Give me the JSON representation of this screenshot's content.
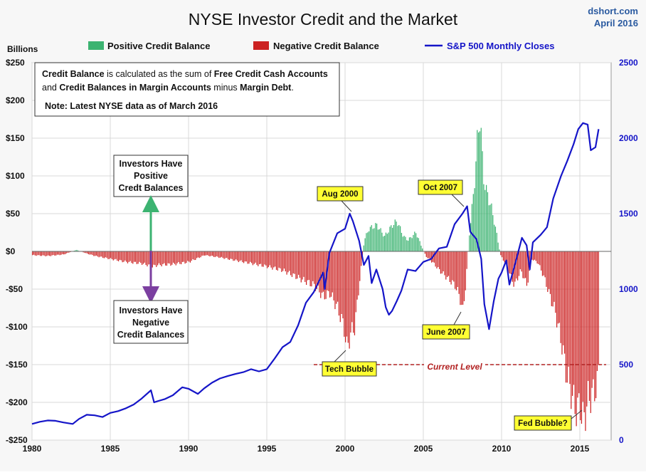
{
  "chart_data": {
    "type": "bar",
    "title": "NYSE Investor Credit and the Market",
    "source": "dshort.com",
    "date": "April 2016",
    "left_axis_label": "Billions",
    "legend": [
      {
        "label": "Positive Credit Balance",
        "color": "#3cb371"
      },
      {
        "label": "Negative Credit Balance",
        "color": "#cc2222"
      },
      {
        "label": "S&P 500 Monthly Closes",
        "color": "#1515c8"
      }
    ],
    "x_ticks": [
      "1980",
      "1985",
      "1990",
      "1995",
      "2000",
      "2005",
      "2010",
      "2015"
    ],
    "x_range": [
      1980,
      2017
    ],
    "y_left": {
      "min": -250,
      "max": 250,
      "ticks": [
        250,
        200,
        150,
        100,
        50,
        0,
        -50,
        -100,
        -150,
        -200,
        -250
      ],
      "tick_labels": [
        "$250",
        "$200",
        "$150",
        "$100",
        "$50",
        "$0",
        "-$50",
        "-$100",
        "-$150",
        "-$200",
        "-$250"
      ]
    },
    "y_right": {
      "min": 0,
      "max": 2500,
      "ticks": [
        2500,
        2000,
        1500,
        1000,
        500,
        0
      ],
      "tick_labels": [
        "2500",
        "2000",
        "1500",
        "1000",
        "500",
        "0"
      ]
    },
    "grid": true,
    "legend_position": "top",
    "credit_balance_series": [
      [
        1980.0,
        -5
      ],
      [
        1981.0,
        -6
      ],
      [
        1982.0,
        -4
      ],
      [
        1982.8,
        2
      ],
      [
        1983.5,
        -3
      ],
      [
        1984.0,
        -6
      ],
      [
        1985.0,
        -10
      ],
      [
        1986.0,
        -14
      ],
      [
        1987.0,
        -16
      ],
      [
        1987.7,
        -20
      ],
      [
        1988.0,
        -18
      ],
      [
        1989.0,
        -17
      ],
      [
        1990.0,
        -14
      ],
      [
        1991.0,
        -5
      ],
      [
        1992.0,
        -8
      ],
      [
        1993.0,
        -12
      ],
      [
        1994.0,
        -16
      ],
      [
        1995.0,
        -20
      ],
      [
        1996.0,
        -25
      ],
      [
        1997.0,
        -35
      ],
      [
        1998.0,
        -45
      ],
      [
        1998.6,
        -60
      ],
      [
        1999.0,
        -55
      ],
      [
        1999.5,
        -75
      ],
      [
        1999.9,
        -100
      ],
      [
        2000.1,
        -130
      ],
      [
        2000.3,
        -110
      ],
      [
        2000.6,
        -100
      ],
      [
        2000.9,
        -40
      ],
      [
        2001.2,
        15
      ],
      [
        2001.5,
        30
      ],
      [
        2002.0,
        35
      ],
      [
        2002.5,
        20
      ],
      [
        2003.0,
        35
      ],
      [
        2003.3,
        40
      ],
      [
        2003.7,
        20
      ],
      [
        2004.0,
        15
      ],
      [
        2004.5,
        25
      ],
      [
        2004.8,
        10
      ],
      [
        2005.0,
        0
      ],
      [
        2005.2,
        -8
      ],
      [
        2005.6,
        -15
      ],
      [
        2006.0,
        -25
      ],
      [
        2006.5,
        -35
      ],
      [
        2007.0,
        -45
      ],
      [
        2007.3,
        -60
      ],
      [
        2007.5,
        -80
      ],
      [
        2007.7,
        -40
      ],
      [
        2007.9,
        20
      ],
      [
        2008.2,
        80
      ],
      [
        2008.4,
        140
      ],
      [
        2008.6,
        183
      ],
      [
        2008.8,
        100
      ],
      [
        2009.0,
        80
      ],
      [
        2009.3,
        60
      ],
      [
        2009.6,
        30
      ],
      [
        2009.9,
        -5
      ],
      [
        2010.2,
        -15
      ],
      [
        2010.5,
        -30
      ],
      [
        2010.8,
        -45
      ],
      [
        2011.2,
        -25
      ],
      [
        2011.6,
        -45
      ],
      [
        2011.9,
        -10
      ],
      [
        2012.3,
        -15
      ],
      [
        2012.7,
        -35
      ],
      [
        2013.0,
        -55
      ],
      [
        2013.4,
        -80
      ],
      [
        2013.8,
        -120
      ],
      [
        2014.1,
        -160
      ],
      [
        2014.4,
        -185
      ],
      [
        2014.7,
        -210
      ],
      [
        2015.0,
        -205
      ],
      [
        2015.2,
        -227
      ],
      [
        2015.5,
        -195
      ],
      [
        2015.8,
        -190
      ],
      [
        2016.1,
        -175
      ],
      [
        2016.2,
        -150
      ]
    ],
    "sp500_series": [
      [
        1980.0,
        107
      ],
      [
        1980.5,
        121
      ],
      [
        1981.0,
        130
      ],
      [
        1981.5,
        128
      ],
      [
        1982.0,
        117
      ],
      [
        1982.6,
        107
      ],
      [
        1983.0,
        140
      ],
      [
        1983.5,
        168
      ],
      [
        1984.0,
        164
      ],
      [
        1984.5,
        153
      ],
      [
        1985.0,
        180
      ],
      [
        1985.5,
        192
      ],
      [
        1986.0,
        211
      ],
      [
        1986.5,
        236
      ],
      [
        1987.0,
        275
      ],
      [
        1987.6,
        330
      ],
      [
        1987.8,
        250
      ],
      [
        1988.0,
        257
      ],
      [
        1988.5,
        272
      ],
      [
        1989.0,
        297
      ],
      [
        1989.6,
        350
      ],
      [
        1990.0,
        340
      ],
      [
        1990.6,
        306
      ],
      [
        1991.0,
        343
      ],
      [
        1991.5,
        380
      ],
      [
        1992.0,
        408
      ],
      [
        1992.5,
        424
      ],
      [
        1993.0,
        438
      ],
      [
        1993.5,
        450
      ],
      [
        1994.0,
        470
      ],
      [
        1994.5,
        455
      ],
      [
        1995.0,
        470
      ],
      [
        1995.5,
        540
      ],
      [
        1996.0,
        615
      ],
      [
        1996.5,
        650
      ],
      [
        1997.0,
        760
      ],
      [
        1997.5,
        910
      ],
      [
        1998.0,
        980
      ],
      [
        1998.6,
        1110
      ],
      [
        1998.7,
        1000
      ],
      [
        1999.0,
        1240
      ],
      [
        1999.5,
        1370
      ],
      [
        2000.0,
        1400
      ],
      [
        2000.3,
        1500
      ],
      [
        2000.5,
        1450
      ],
      [
        2000.9,
        1320
      ],
      [
        2001.2,
        1160
      ],
      [
        2001.5,
        1220
      ],
      [
        2001.7,
        1040
      ],
      [
        2002.0,
        1130
      ],
      [
        2002.4,
        1000
      ],
      [
        2002.6,
        880
      ],
      [
        2002.8,
        830
      ],
      [
        2003.0,
        855
      ],
      [
        2003.3,
        920
      ],
      [
        2003.6,
        990
      ],
      [
        2004.0,
        1130
      ],
      [
        2004.5,
        1120
      ],
      [
        2005.0,
        1180
      ],
      [
        2005.5,
        1200
      ],
      [
        2006.0,
        1270
      ],
      [
        2006.5,
        1280
      ],
      [
        2007.0,
        1430
      ],
      [
        2007.5,
        1500
      ],
      [
        2007.8,
        1549
      ],
      [
        2008.0,
        1380
      ],
      [
        2008.4,
        1330
      ],
      [
        2008.7,
        1200
      ],
      [
        2008.9,
        900
      ],
      [
        2009.2,
        735
      ],
      [
        2009.5,
        920
      ],
      [
        2009.8,
        1070
      ],
      [
        2010.0,
        1110
      ],
      [
        2010.3,
        1190
      ],
      [
        2010.5,
        1030
      ],
      [
        2010.9,
        1180
      ],
      [
        2011.3,
        1340
      ],
      [
        2011.6,
        1290
      ],
      [
        2011.8,
        1130
      ],
      [
        2012.0,
        1310
      ],
      [
        2012.5,
        1360
      ],
      [
        2012.9,
        1410
      ],
      [
        2013.3,
        1600
      ],
      [
        2013.8,
        1750
      ],
      [
        2014.2,
        1850
      ],
      [
        2014.6,
        1960
      ],
      [
        2014.9,
        2060
      ],
      [
        2015.2,
        2100
      ],
      [
        2015.5,
        2090
      ],
      [
        2015.7,
        1920
      ],
      [
        2016.0,
        1940
      ],
      [
        2016.2,
        2060
      ]
    ],
    "current_level": -150,
    "current_level_label": "Current Level",
    "annotations": {
      "info_box": {
        "line1_a": "Credit Balance",
        "line1_b": " is calculated as the sum of ",
        "line1_c": "Free Credit Cash Accounts",
        "line2_a": "and ",
        "line2_b": "Credit Balances in Margin Accounts",
        "line2_c": " minus ",
        "line2_d": "Margin Debt",
        "line2_e": ".",
        "note": "Note: Latest NYSE data as of March 2016"
      },
      "positive_box": [
        "Investors Have",
        "Positive",
        "Credt Balances"
      ],
      "negative_box": [
        "Investors Have",
        "Negative",
        "Credit Balances"
      ],
      "callouts": [
        "Aug 2000",
        "Oct 2007",
        "June 2007",
        "Tech Bubble",
        "Fed Bubble?"
      ]
    }
  }
}
